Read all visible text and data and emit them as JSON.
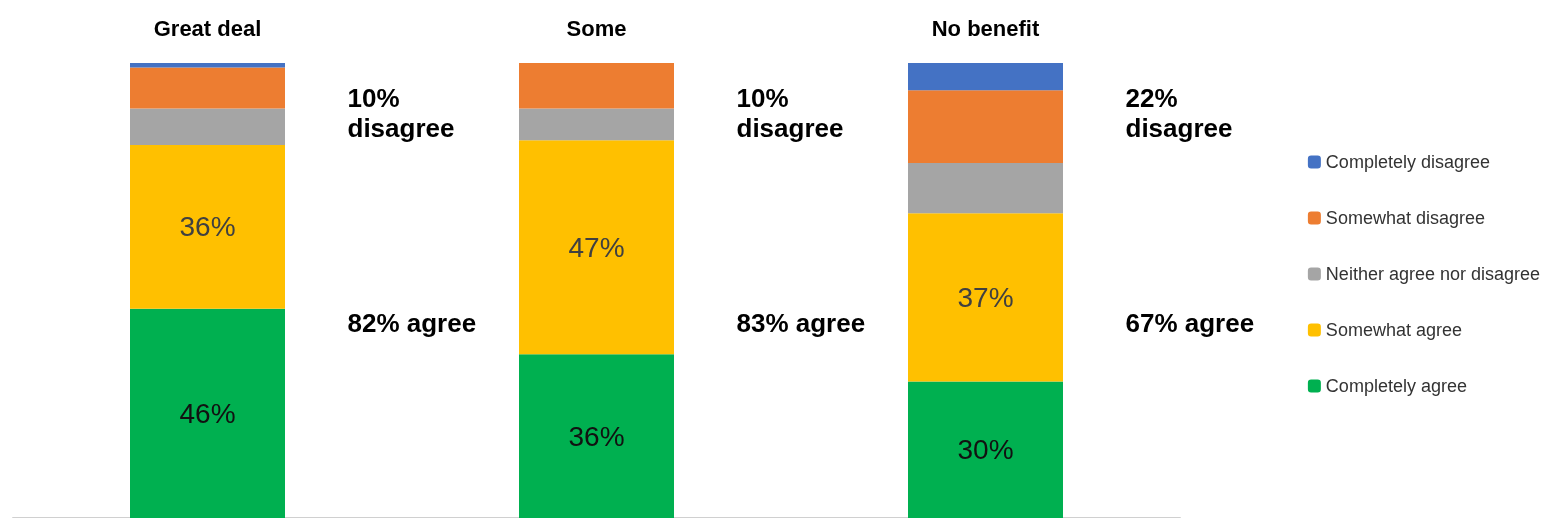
{
  "chart_data": {
    "type": "bar",
    "stacked": true,
    "categories": [
      "Great deal",
      "Some",
      "No benefit"
    ],
    "ylim": [
      0,
      100
    ],
    "tick_labels": "x",
    "grid": false,
    "legend": "right",
    "series": [
      {
        "name": "Completely agree",
        "color": "#00b050",
        "values": [
          46,
          36,
          30
        ],
        "value_labels": [
          "46%",
          "36%",
          "30%"
        ]
      },
      {
        "name": "Somewhat agree",
        "color": "#ffc000",
        "values": [
          36,
          47,
          37
        ],
        "value_labels": [
          "36%",
          "47%",
          "37%"
        ]
      },
      {
        "name": "Neither agree nor disagree",
        "color": "#a5a5a5",
        "values": [
          8,
          7,
          11
        ]
      },
      {
        "name": "Somewhat disagree",
        "color": "#ed7d31",
        "values": [
          9,
          10,
          16
        ]
      },
      {
        "name": "Completely disagree",
        "color": "#4472c4",
        "values": [
          1,
          0,
          6
        ]
      }
    ],
    "annotations": [
      "10% disagree",
      "82% agree",
      "10% disagree",
      "83% agree",
      "22% disagree",
      "67% agree"
    ]
  }
}
